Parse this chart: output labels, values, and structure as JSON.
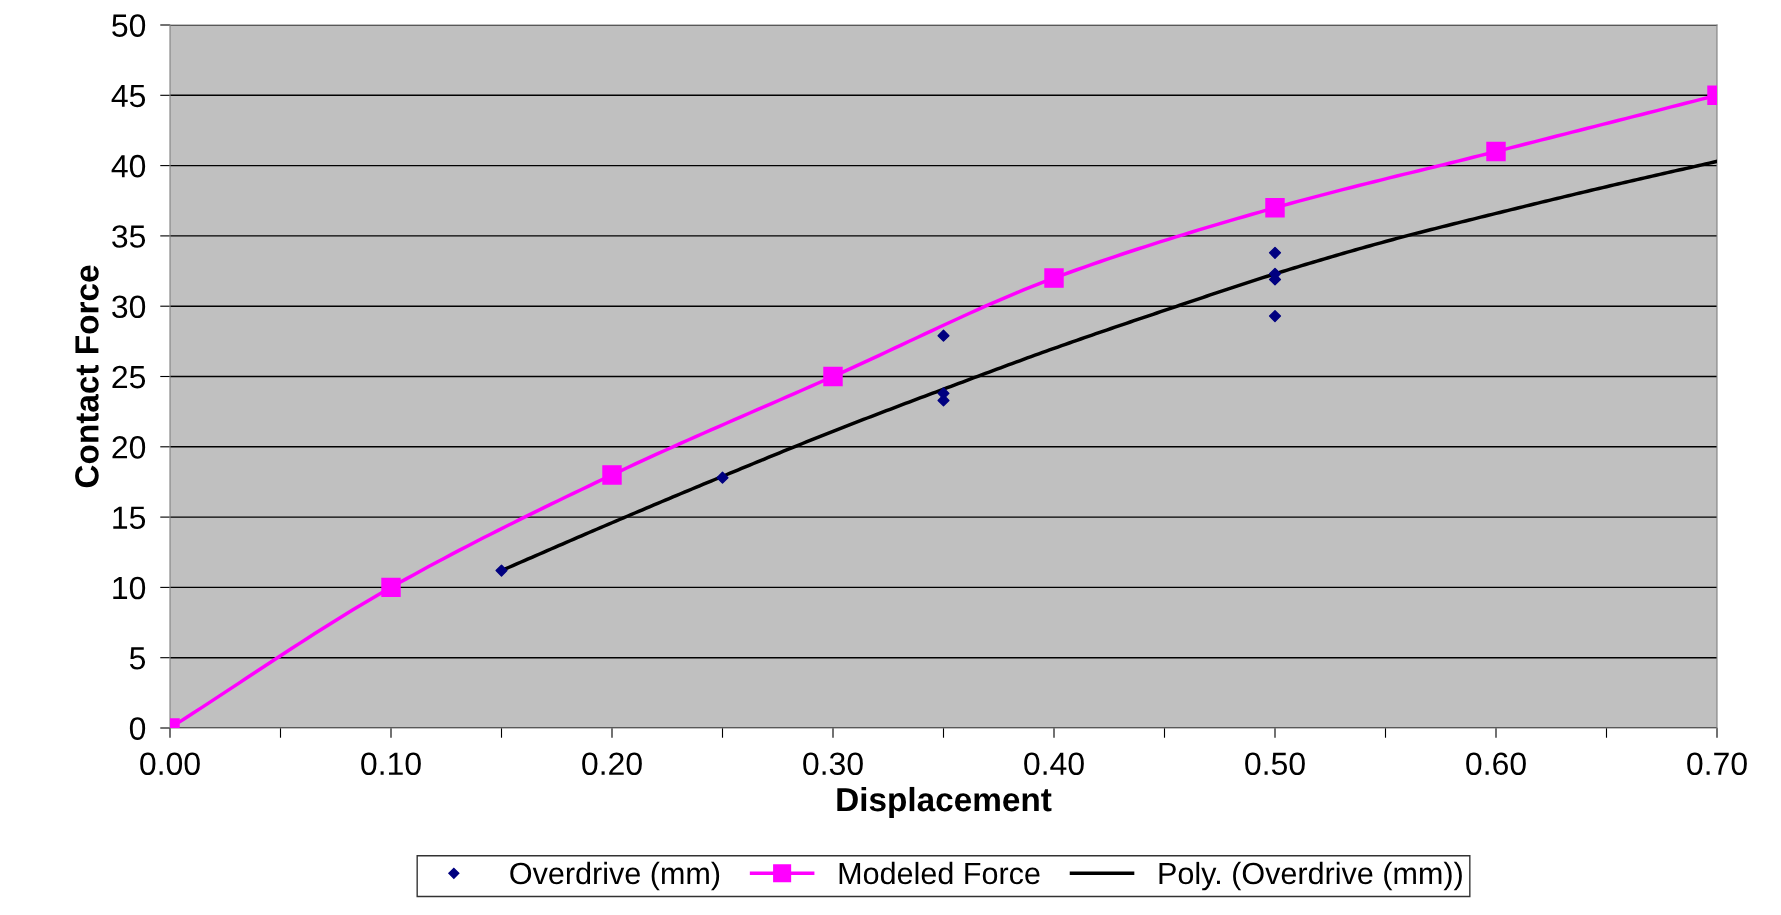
{
  "chart_data": {
    "type": "line",
    "xlabel": "Displacement",
    "ylabel": "Contact Force",
    "xlim": [
      0,
      0.7
    ],
    "ylim": [
      0,
      50
    ],
    "xticks": [
      {
        "value": 0,
        "label": "0.00"
      },
      {
        "value": 0.05,
        "label": null
      },
      {
        "value": 0.1,
        "label": "0.10"
      },
      {
        "value": 0.15,
        "label": null
      },
      {
        "value": 0.2,
        "label": "0.20"
      },
      {
        "value": 0.25,
        "label": null
      },
      {
        "value": 0.3,
        "label": "0.30"
      },
      {
        "value": 0.35,
        "label": null
      },
      {
        "value": 0.4,
        "label": "0.40"
      },
      {
        "value": 0.45,
        "label": null
      },
      {
        "value": 0.5,
        "label": "0.50"
      },
      {
        "value": 0.55,
        "label": null
      },
      {
        "value": 0.6,
        "label": "0.60"
      },
      {
        "value": 0.65,
        "label": null
      },
      {
        "value": 0.7,
        "label": "0.70"
      }
    ],
    "yticks": [
      0,
      5,
      10,
      15,
      20,
      25,
      30,
      35,
      40,
      45,
      50
    ],
    "grid": "y",
    "legend": "bottom",
    "series": [
      {
        "name": "Overdrive (mm)",
        "type": "scatter",
        "marker": "diamond",
        "color": "#000080",
        "x": [
          0.15,
          0.25,
          0.35,
          0.35,
          0.35,
          0.5,
          0.5,
          0.5,
          0.5
        ],
        "values": [
          11.2,
          17.8,
          27.9,
          23.8,
          23.3,
          33.8,
          32.3,
          31.9,
          29.3
        ]
      },
      {
        "name": "Modeled Force",
        "marker": "square",
        "color": "#ff00ff",
        "x": [
          0,
          0.1,
          0.2,
          0.3,
          0.4,
          0.5,
          0.6,
          0.7
        ],
        "values": [
          0,
          10,
          18,
          25,
          32,
          37,
          41,
          45
        ]
      },
      {
        "name": "Poly. (Overdrive (mm))",
        "marker": "none",
        "color": "#000000",
        "x": [
          0.15,
          0.2,
          0.25,
          0.3,
          0.35,
          0.4,
          0.45,
          0.5,
          0.55,
          0.6,
          0.65,
          0.7
        ],
        "values": [
          11.2,
          14.6,
          17.9,
          21.1,
          24.1,
          27.0,
          29.7,
          32.3,
          34.6,
          36.6,
          38.5,
          40.3
        ]
      }
    ]
  }
}
